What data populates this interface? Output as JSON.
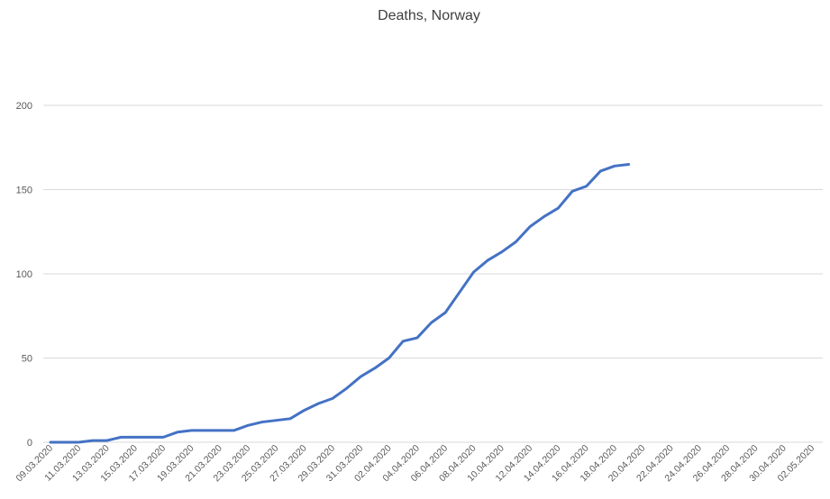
{
  "chart_data": {
    "type": "line",
    "title": "Deaths, Norway",
    "xlabel": "",
    "ylabel": "",
    "ylim": [
      0,
      200
    ],
    "yticks": [
      0,
      50,
      100,
      150,
      200
    ],
    "x_tick_labels": [
      "09.03.2020",
      "11.03.2020",
      "13.03.2020",
      "15.03.2020",
      "17.03.2020",
      "19.03.2020",
      "21.03.2020",
      "23.03.2020",
      "25.03.2020",
      "27.03.2020",
      "29.03.2020",
      "31.03.2020",
      "02.04.2020",
      "04.04.2020",
      "06.04.2020",
      "08.04.2020",
      "10.04.2020",
      "12.04.2020",
      "14.04.2020",
      "16.04.2020",
      "18.04.2020",
      "20.04.2020",
      "22.04.2020",
      "24.04.2020",
      "26.04.2020",
      "28.04.2020",
      "30.04.2020",
      "02.05.2020"
    ],
    "grid": true,
    "series": [
      {
        "color": "#4472c4",
        "x": [
          "09.03.2020",
          "10.03.2020",
          "11.03.2020",
          "12.03.2020",
          "13.03.2020",
          "14.03.2020",
          "15.03.2020",
          "16.03.2020",
          "17.03.2020",
          "18.03.2020",
          "19.03.2020",
          "20.03.2020",
          "21.03.2020",
          "22.03.2020",
          "23.03.2020",
          "24.03.2020",
          "25.03.2020",
          "26.03.2020",
          "27.03.2020",
          "28.03.2020",
          "29.03.2020",
          "30.03.2020",
          "31.03.2020",
          "01.04.2020",
          "02.04.2020",
          "03.04.2020",
          "04.04.2020",
          "05.04.2020",
          "06.04.2020",
          "07.04.2020",
          "08.04.2020",
          "09.04.2020",
          "10.04.2020",
          "11.04.2020",
          "12.04.2020",
          "13.04.2020",
          "14.04.2020",
          "15.04.2020",
          "16.04.2020",
          "17.04.2020",
          "18.04.2020",
          "19.04.2020"
        ],
        "values": [
          0,
          0,
          0,
          1,
          1,
          3,
          3,
          3,
          3,
          6,
          7,
          7,
          7,
          7,
          10,
          12,
          13,
          14,
          19,
          23,
          26,
          32,
          39,
          44,
          50,
          60,
          62,
          71,
          77,
          89,
          101,
          108,
          113,
          119,
          128,
          134,
          139,
          149,
          152,
          161,
          164,
          165
        ]
      }
    ]
  }
}
